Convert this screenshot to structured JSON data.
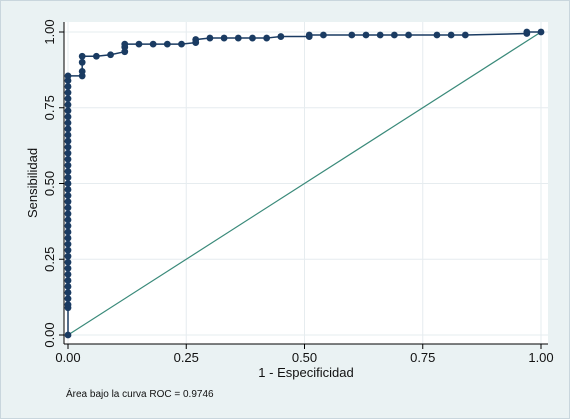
{
  "chart_data": {
    "type": "line",
    "xlabel": "1 - Especificidad",
    "ylabel": "Sensibilidad",
    "xlim": [
      0,
      1
    ],
    "ylim": [
      0,
      1
    ],
    "xticks": [
      "0.00",
      "0.25",
      "0.50",
      "0.75",
      "1.00"
    ],
    "yticks": [
      "0.00",
      "0.25",
      "0.50",
      "0.75",
      "1.00"
    ],
    "grid": true,
    "legend": "none",
    "note": "Área bajo la curva ROC = 0.9746",
    "colors": {
      "background": "#eaf2f3",
      "plot_area": "#ffffff",
      "roc_curve": "#1a3b62",
      "reference_line": "#3a8a7a",
      "grid": "#e6ecef"
    },
    "series": [
      {
        "values": [
          [
            0,
            0
          ],
          [
            0,
            0.09
          ],
          [
            0,
            0.1
          ],
          [
            0,
            0.12
          ],
          [
            0,
            0.14
          ],
          [
            0,
            0.16
          ],
          [
            0,
            0.18
          ],
          [
            0,
            0.2
          ],
          [
            0,
            0.22
          ],
          [
            0,
            0.24
          ],
          [
            0,
            0.26
          ],
          [
            0,
            0.28
          ],
          [
            0,
            0.3
          ],
          [
            0,
            0.32
          ],
          [
            0,
            0.34
          ],
          [
            0,
            0.36
          ],
          [
            0,
            0.38
          ],
          [
            0,
            0.4
          ],
          [
            0,
            0.42
          ],
          [
            0,
            0.44
          ],
          [
            0,
            0.46
          ],
          [
            0,
            0.48
          ],
          [
            0,
            0.5
          ],
          [
            0,
            0.52
          ],
          [
            0,
            0.54
          ],
          [
            0,
            0.56
          ],
          [
            0,
            0.58
          ],
          [
            0,
            0.6
          ],
          [
            0,
            0.62
          ],
          [
            0,
            0.64
          ],
          [
            0,
            0.66
          ],
          [
            0,
            0.68
          ],
          [
            0,
            0.7
          ],
          [
            0,
            0.72
          ],
          [
            0,
            0.74
          ],
          [
            0,
            0.76
          ],
          [
            0,
            0.78
          ],
          [
            0,
            0.8
          ],
          [
            0,
            0.82
          ],
          [
            0,
            0.84
          ],
          [
            0,
            0.855
          ],
          [
            0.03,
            0.855
          ],
          [
            0.03,
            0.87
          ],
          [
            0.03,
            0.9
          ],
          [
            0.03,
            0.92
          ],
          [
            0.06,
            0.92
          ],
          [
            0.09,
            0.925
          ],
          [
            0.12,
            0.935
          ],
          [
            0.12,
            0.95
          ],
          [
            0.12,
            0.96
          ],
          [
            0.15,
            0.96
          ],
          [
            0.18,
            0.96
          ],
          [
            0.21,
            0.96
          ],
          [
            0.24,
            0.96
          ],
          [
            0.27,
            0.965
          ],
          [
            0.27,
            0.975
          ],
          [
            0.3,
            0.98
          ],
          [
            0.33,
            0.98
          ],
          [
            0.36,
            0.98
          ],
          [
            0.39,
            0.98
          ],
          [
            0.42,
            0.98
          ],
          [
            0.45,
            0.985
          ],
          [
            0.51,
            0.985
          ],
          [
            0.51,
            0.99
          ],
          [
            0.54,
            0.99
          ],
          [
            0.6,
            0.99
          ],
          [
            0.63,
            0.99
          ],
          [
            0.66,
            0.99
          ],
          [
            0.69,
            0.99
          ],
          [
            0.72,
            0.99
          ],
          [
            0.78,
            0.99
          ],
          [
            0.81,
            0.99
          ],
          [
            0.84,
            0.99
          ],
          [
            0.97,
            0.995
          ],
          [
            0.97,
            1.0
          ],
          [
            1.0,
            1.0
          ]
        ]
      },
      {
        "values": [
          [
            0,
            0
          ],
          [
            1,
            1
          ]
        ]
      }
    ]
  }
}
